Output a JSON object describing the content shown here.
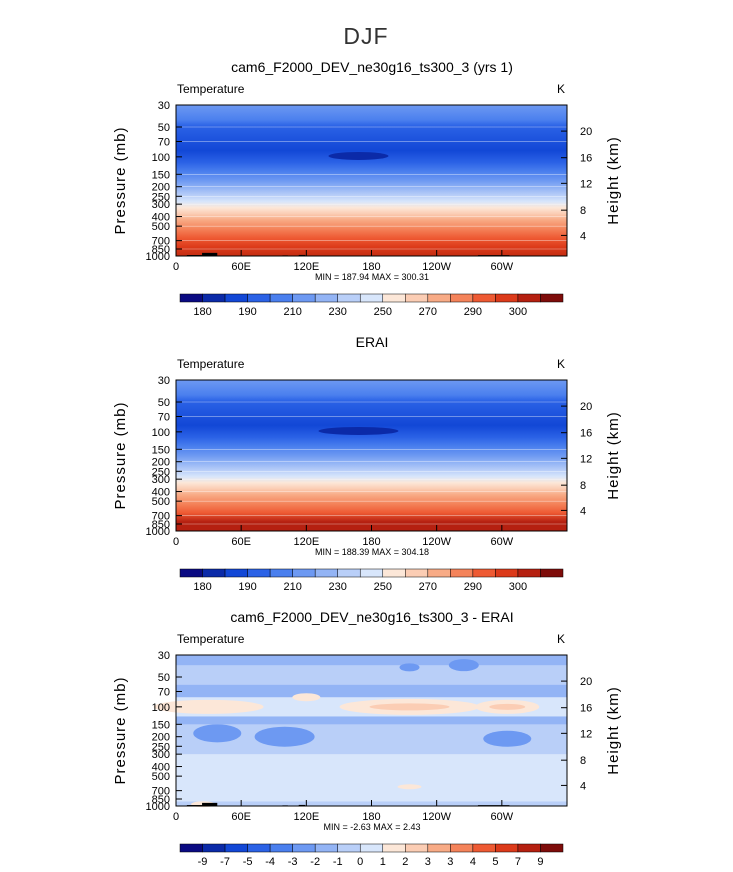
{
  "page": {
    "title": "DJF"
  },
  "scales": {
    "abs": {
      "colors": [
        "#0a0a82",
        "#0b2aa8",
        "#1247d6",
        "#2b62e6",
        "#4a7fee",
        "#6d99f2",
        "#93b4f5",
        "#b9cff8",
        "#d8e6fb",
        "#fce7d8",
        "#fbcdb4",
        "#f8ab86",
        "#f4835a",
        "#ee5a33",
        "#dc3a1a",
        "#b52010",
        "#7e0c0a"
      ],
      "labels": [
        "180",
        "190",
        "210",
        "230",
        "250",
        "270",
        "290",
        "300"
      ]
    },
    "diff": {
      "colors": [
        "#0a0a82",
        "#0b2aa8",
        "#1247d6",
        "#2b62e6",
        "#4a7fee",
        "#6d99f2",
        "#93b4f5",
        "#b9cff8",
        "#d8e6fb",
        "#fce7d8",
        "#fbcdb4",
        "#f8ab86",
        "#f4835a",
        "#ee5a33",
        "#dc3a1a",
        "#b52010",
        "#7e0c0a"
      ],
      "labels": [
        "-9",
        "-7",
        "-5",
        "-4",
        "-3",
        "-2",
        "-1",
        "0",
        "1",
        "2",
        "3",
        "3",
        "4",
        "5",
        "7",
        "9"
      ]
    }
  },
  "axes": {
    "ylabel": "Pressure (mb)",
    "y2label": "Height (km)",
    "pressure_ticks": [
      "30",
      "50",
      "70",
      "100",
      "150",
      "200",
      "250",
      "300",
      "400",
      "500",
      "700",
      "850",
      "1000"
    ],
    "height_ticks": [
      "20",
      "16",
      "12",
      "8",
      "4"
    ],
    "lon_ticks": [
      "0",
      "60E",
      "120E",
      "180",
      "120W",
      "60W"
    ]
  },
  "chart_data": [
    {
      "type": "heatmap",
      "title": "cam6_F2000_DEV_ne30g16_ts300_3 (yrs 1)",
      "variable": "Temperature",
      "units": "K",
      "stats": "MIN = 187.94   MAX = 300.31",
      "min": 187.94,
      "max": 300.31,
      "scale": "abs",
      "x": "longitude 0-360",
      "y": "pressure 30-1000 mb (log)"
    },
    {
      "type": "heatmap",
      "title": "ERAI",
      "variable": "Temperature",
      "units": "K",
      "stats": "MIN = 188.39   MAX = 304.18",
      "min": 188.39,
      "max": 304.18,
      "scale": "abs",
      "x": "longitude 0-360",
      "y": "pressure 30-1000 mb (log)"
    },
    {
      "type": "heatmap",
      "title": "cam6_F2000_DEV_ne30g16_ts300_3 - ERAI",
      "variable": "Temperature",
      "units": "K",
      "stats": "MIN =   -2.63   MAX =    2.43",
      "min": -2.63,
      "max": 2.43,
      "scale": "diff",
      "x": "longitude 0-360",
      "y": "pressure 30-1000 mb (log)"
    }
  ]
}
